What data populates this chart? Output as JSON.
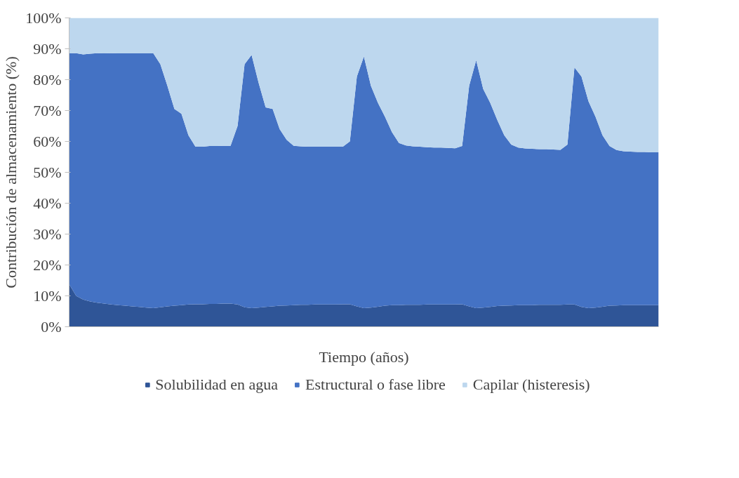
{
  "chart_data": {
    "type": "area",
    "stacked": true,
    "xlabel": "Tiempo (años)",
    "ylabel": "Contribución de almacenamiento (%)",
    "categories": [
      null,
      null,
      null,
      null,
      null,
      null,
      null,
      null,
      null,
      null,
      null,
      null,
      null,
      null,
      null,
      null,
      null,
      null,
      null,
      null,
      null,
      null,
      null,
      null,
      null,
      null,
      null,
      null,
      null,
      null,
      null,
      null,
      null,
      null,
      null,
      null,
      null,
      null,
      null,
      null,
      null,
      null,
      null,
      null,
      null,
      null,
      null,
      null,
      null,
      null,
      null,
      null,
      null,
      null,
      null,
      null,
      null,
      null,
      null,
      null,
      null,
      null,
      null,
      null,
      null,
      null,
      null,
      null,
      null,
      null,
      null,
      null,
      null,
      null,
      null,
      null,
      null,
      null,
      null,
      null,
      null,
      null,
      null,
      null,
      null
    ],
    "ylim": [
      0,
      100
    ],
    "yticks": [
      {
        "value": 0,
        "label": "0%"
      },
      {
        "value": 10,
        "label": "10%"
      },
      {
        "value": 20,
        "label": "20%"
      },
      {
        "value": 30,
        "label": "30%"
      },
      {
        "value": 40,
        "label": "40%"
      },
      {
        "value": 50,
        "label": "50%"
      },
      {
        "value": 60,
        "label": "60%"
      },
      {
        "value": 70,
        "label": "70%"
      },
      {
        "value": 80,
        "label": "80%"
      },
      {
        "value": 90,
        "label": "90%"
      },
      {
        "value": 100,
        "label": "100%"
      }
    ],
    "tick_labels": "y",
    "grid": false,
    "legend": "bottom",
    "series": [
      {
        "name": "Solubilidad en agua",
        "color": "#2f5597",
        "values": [
          13.8,
          10,
          8.8,
          8.2,
          7.8,
          7.5,
          7.2,
          7.0,
          6.8,
          6.6,
          6.4,
          6.2,
          6.0,
          6.3,
          6.6,
          6.8,
          7.0,
          7.2,
          7.3,
          7.3,
          7.4,
          7.4,
          7.5,
          7.5,
          7.2,
          6.3,
          6.0,
          6.2,
          6.4,
          6.6,
          6.8,
          6.9,
          7.0,
          7.1,
          7.1,
          7.2,
          7.2,
          7.2,
          7.2,
          7.3,
          7.3,
          6.6,
          6.0,
          6.2,
          6.5,
          6.8,
          7.0,
          7.0,
          7.1,
          7.1,
          7.1,
          7.2,
          7.2,
          7.2,
          7.2,
          7.2,
          7.3,
          6.6,
          6.0,
          6.2,
          6.4,
          6.7,
          6.8,
          6.9,
          7.0,
          7.0,
          7.0,
          7.1,
          7.1,
          7.1,
          7.1,
          7.2,
          7.2,
          6.4,
          6.0,
          6.2,
          6.5,
          6.8,
          6.9,
          7.0,
          7.0,
          7.0,
          7.0,
          7.0,
          7.0
        ]
      },
      {
        "name": "Estructural o fase libre",
        "color": "#4472c4",
        "values": [
          74.7,
          78.6,
          79.4,
          80.2,
          80.8,
          81.0,
          81.4,
          81.5,
          81.7,
          81.9,
          82.1,
          82.3,
          82.5,
          78.7,
          71.4,
          63.7,
          62.0,
          54.8,
          51.0,
          51.0,
          51.1,
          51.1,
          51.1,
          51.1,
          57.8,
          78.7,
          82.0,
          72.8,
          64.6,
          63.9,
          57.2,
          53.6,
          51.6,
          51.3,
          51.2,
          51.1,
          51.1,
          51.1,
          51.1,
          51.0,
          52.7,
          74.4,
          81.5,
          71.8,
          66.0,
          61.2,
          56.0,
          52.5,
          51.6,
          51.3,
          51.2,
          50.9,
          50.8,
          50.8,
          50.7,
          50.6,
          51.2,
          71.4,
          80.3,
          70.8,
          66.1,
          60.3,
          55.2,
          52.1,
          51.0,
          50.7,
          50.6,
          50.4,
          50.4,
          50.3,
          50.2,
          51.8,
          76.8,
          74.6,
          67.0,
          61.8,
          55.5,
          51.7,
          50.3,
          49.8,
          49.7,
          49.6,
          49.6,
          49.5,
          49.5
        ]
      },
      {
        "name": "Capilar (histeresis)",
        "color": "#bdd7ee",
        "values": [
          11.5,
          11.4,
          11.8,
          11.6,
          11.4,
          11.5,
          11.4,
          11.5,
          11.5,
          11.5,
          11.5,
          11.5,
          11.5,
          15,
          22,
          29.5,
          31,
          38,
          41.7,
          41.7,
          41.5,
          41.5,
          41.4,
          41.4,
          35,
          15,
          12,
          21,
          29,
          29.5,
          36,
          39.5,
          41.4,
          41.6,
          41.7,
          41.7,
          41.7,
          41.7,
          41.7,
          41.7,
          40,
          19,
          12.5,
          22,
          27.5,
          32,
          37,
          40.5,
          41.3,
          41.6,
          41.7,
          41.9,
          42,
          42,
          42.1,
          42.2,
          41.5,
          22,
          13.7,
          23,
          27.5,
          33,
          38,
          41,
          42,
          42.3,
          42.4,
          42.5,
          42.5,
          42.6,
          42.7,
          41,
          16,
          19,
          27,
          32,
          38,
          41.5,
          42.8,
          43.2,
          43.3,
          43.4,
          43.4,
          43.5,
          43.5
        ]
      }
    ]
  }
}
